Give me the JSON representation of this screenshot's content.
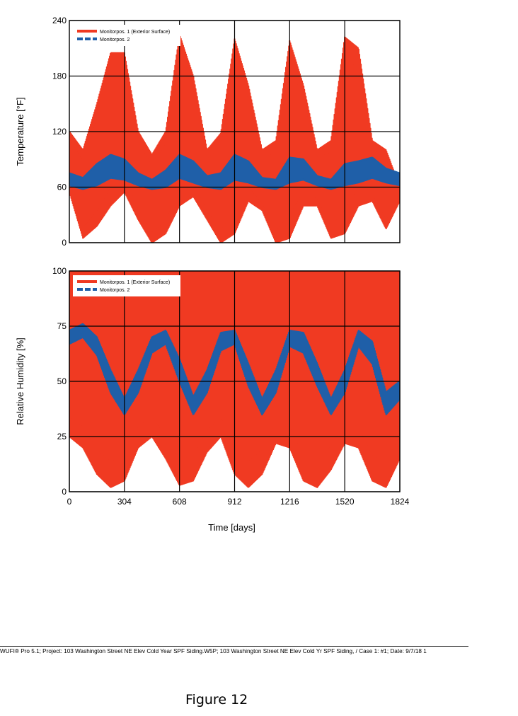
{
  "chart_data": [
    {
      "type": "line",
      "ylabel": "Temperature [°F]",
      "xlabel": "",
      "xlim": [
        0,
        1824
      ],
      "ylim": [
        0,
        240
      ],
      "yticks": [
        0,
        60,
        120,
        180,
        240
      ],
      "xticks": [
        304,
        608,
        912,
        1216,
        1520
      ],
      "grid": true,
      "legend_position": "top-left",
      "series": [
        {
          "name": "Monitorpos. 1 (Exterior Surface)",
          "color": "#f03a22",
          "style": "band",
          "x": [
            0,
            75,
            152,
            228,
            304,
            380,
            456,
            532,
            608,
            684,
            760,
            836,
            912,
            988,
            1064,
            1140,
            1216,
            1292,
            1368,
            1444,
            1520,
            1596,
            1672,
            1748,
            1824
          ],
          "upper": [
            120,
            100,
            150,
            205,
            205,
            120,
            95,
            120,
            225,
            180,
            100,
            118,
            220,
            170,
            100,
            110,
            218,
            170,
            100,
            110,
            222,
            210,
            110,
            100,
            60
          ],
          "lower": [
            55,
            5,
            18,
            40,
            55,
            25,
            0,
            10,
            40,
            50,
            25,
            0,
            10,
            45,
            35,
            0,
            5,
            40,
            40,
            5,
            10,
            40,
            45,
            15,
            45
          ]
        },
        {
          "name": "Monitorpos. 2",
          "color": "#1f5fa8",
          "style": "band",
          "x": [
            0,
            75,
            152,
            228,
            304,
            380,
            456,
            532,
            608,
            684,
            760,
            836,
            912,
            988,
            1064,
            1140,
            1216,
            1292,
            1368,
            1444,
            1520,
            1596,
            1672,
            1748,
            1824
          ],
          "upper": [
            75,
            70,
            85,
            95,
            90,
            75,
            68,
            78,
            95,
            88,
            72,
            75,
            95,
            88,
            70,
            68,
            92,
            90,
            72,
            68,
            85,
            88,
            92,
            80,
            75
          ],
          "lower": [
            62,
            58,
            62,
            70,
            68,
            62,
            58,
            60,
            70,
            65,
            60,
            58,
            68,
            65,
            60,
            58,
            65,
            68,
            62,
            58,
            62,
            65,
            70,
            65,
            62
          ]
        }
      ]
    },
    {
      "type": "line",
      "ylabel": "Relative Humidity [%]",
      "xlabel": "Time [days]",
      "xlim": [
        0,
        1824
      ],
      "ylim": [
        0,
        100
      ],
      "yticks": [
        0,
        25,
        50,
        75,
        100
      ],
      "xticks": [
        0,
        304,
        608,
        912,
        1216,
        1520,
        1824
      ],
      "grid": true,
      "legend_position": "top-left",
      "series": [
        {
          "name": "Monitorpos. 1 (Exterior Surface)",
          "color": "#f03a22",
          "style": "band",
          "x": [
            0,
            75,
            152,
            228,
            304,
            380,
            456,
            532,
            608,
            684,
            760,
            836,
            912,
            988,
            1064,
            1140,
            1216,
            1292,
            1368,
            1444,
            1520,
            1596,
            1672,
            1748,
            1824
          ],
          "upper": [
            100,
            100,
            100,
            100,
            100,
            100,
            100,
            100,
            100,
            100,
            100,
            100,
            100,
            100,
            100,
            100,
            100,
            100,
            100,
            100,
            100,
            100,
            100,
            100,
            100
          ],
          "lower": [
            25,
            20,
            8,
            2,
            5,
            20,
            25,
            15,
            3,
            5,
            18,
            25,
            8,
            2,
            8,
            22,
            20,
            5,
            2,
            10,
            22,
            20,
            5,
            2,
            15
          ]
        },
        {
          "name": "Monitorpos. 2",
          "color": "#1f5fa8",
          "style": "band",
          "x": [
            0,
            75,
            152,
            228,
            304,
            380,
            456,
            532,
            608,
            684,
            760,
            836,
            912,
            988,
            1064,
            1140,
            1216,
            1292,
            1368,
            1444,
            1520,
            1596,
            1672,
            1748,
            1824
          ],
          "upper": [
            73,
            76,
            70,
            55,
            42,
            55,
            70,
            73,
            60,
            43,
            55,
            72,
            73,
            58,
            42,
            55,
            73,
            72,
            58,
            42,
            55,
            73,
            68,
            45,
            50
          ],
          "lower": [
            67,
            70,
            62,
            45,
            35,
            45,
            63,
            67,
            50,
            35,
            45,
            64,
            67,
            48,
            35,
            45,
            66,
            63,
            48,
            35,
            45,
            66,
            58,
            35,
            42
          ]
        }
      ]
    }
  ],
  "footer": "WUFI® Pro 5.1; Project: 103 Washington Street NE Elev Cold Year SPF Siding.W5P; 103 Washington Street NE Elev Cold Yr SPF Siding, / Case 1: #1; Date: 9/7/18 1",
  "caption": "Figure 12"
}
